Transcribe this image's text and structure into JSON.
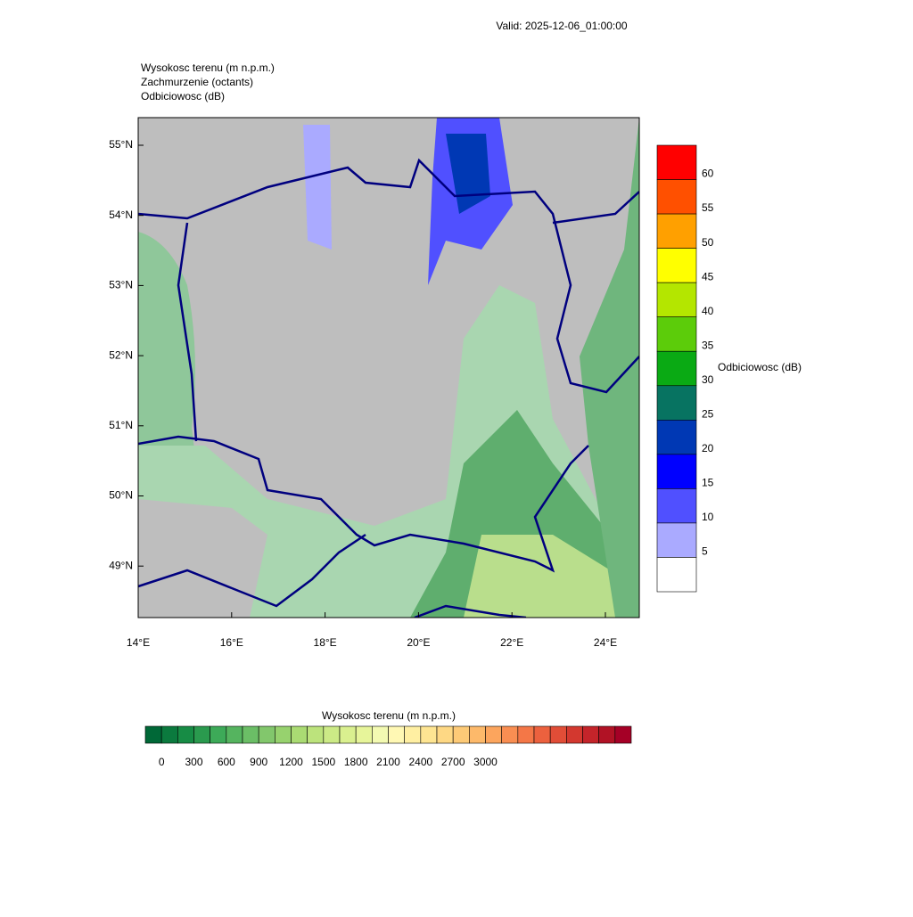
{
  "header": {
    "valid": "Valid: 2025-12-06_01:00:00"
  },
  "fields": [
    "Wysokosc terenu   (m n.p.m.)",
    "Zachmurzenie   (octants)",
    "Odbiciowosc   (dB)"
  ],
  "map": {
    "lat_labels": [
      "55°N",
      "54°N",
      "53°N",
      "52°N",
      "51°N",
      "50°N",
      "49°N"
    ],
    "lon_labels": [
      "14°E",
      "16°E",
      "18°E",
      "20°E",
      "22°E",
      "24°E"
    ]
  },
  "reflectivity_bar": {
    "title": "Odbiciowosc  (dB)",
    "labels": [
      "60",
      "55",
      "50",
      "45",
      "40",
      "35",
      "30",
      "25",
      "20",
      "15",
      "10",
      "5"
    ],
    "colors": [
      "#ff0000",
      "#ff5000",
      "#ffa000",
      "#ffff00",
      "#b4e600",
      "#5ccc0a",
      "#0aaa14",
      "#077361",
      "#0038b4",
      "#0000ff",
      "#5050ff",
      "#aaaaff",
      "#ffffff"
    ]
  },
  "terrain_bar": {
    "title": "Wysokosc terenu  (m n.p.m.)",
    "labels": [
      "0",
      "300",
      "600",
      "900",
      "1200",
      "1500",
      "1800",
      "2100",
      "2400",
      "2700",
      "3000"
    ],
    "colors": [
      "#006837",
      "#0b7a3e",
      "#178c45",
      "#2a9a4e",
      "#3daa58",
      "#55b45f",
      "#6bbe66",
      "#82c76c",
      "#97d26e",
      "#aadb73",
      "#bce37c",
      "#ccea86",
      "#daf08f",
      "#e7f59a",
      "#f3fab2",
      "#fff8b4",
      "#ffefa2",
      "#fee592",
      "#fed884",
      "#fdca77",
      "#fdb96a",
      "#fca55d",
      "#f98e52",
      "#f47747",
      "#ec613e",
      "#e14d37",
      "#d3382f",
      "#c4242a",
      "#b11225",
      "#a50026"
    ]
  }
}
